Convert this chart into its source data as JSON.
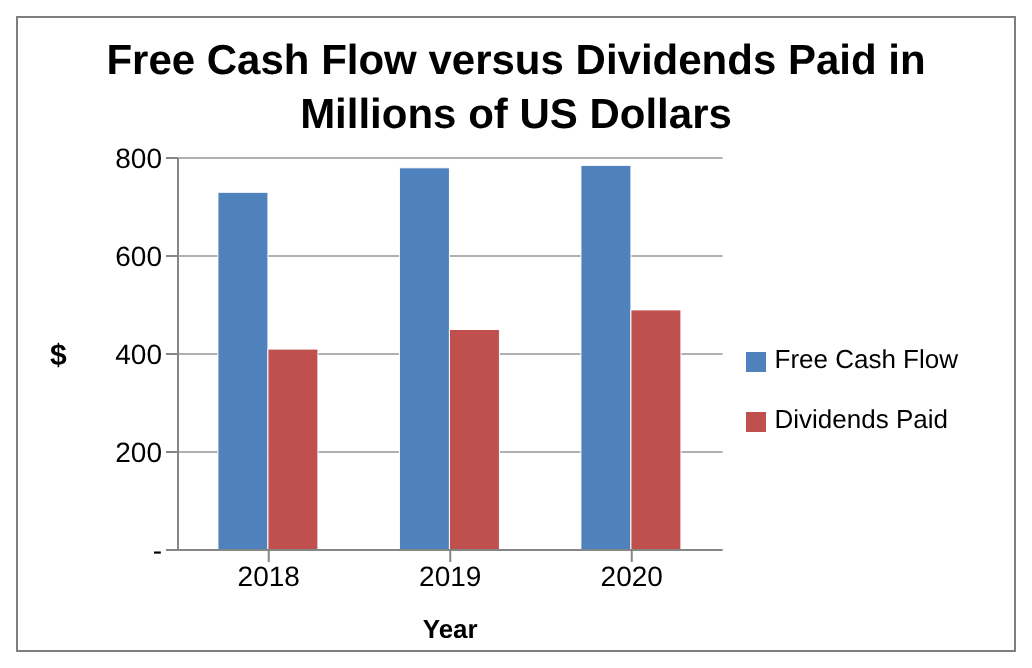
{
  "chart_data": {
    "type": "bar",
    "title": "Free Cash Flow versus Dividends Paid in Millions of US Dollars",
    "xlabel": "Year",
    "ylabel": "$",
    "categories": [
      "2018",
      "2019",
      "2020"
    ],
    "series": [
      {
        "name": "Free Cash Flow",
        "color": "#4f81bd",
        "values": [
          730,
          780,
          785
        ]
      },
      {
        "name": "Dividends Paid",
        "color": "#c0504d",
        "values": [
          410,
          450,
          490
        ]
      }
    ],
    "ylim": [
      0,
      800
    ],
    "yticks": [
      {
        "value": 0,
        "label": "-"
      },
      200,
      400,
      600,
      800
    ],
    "grid": "y",
    "legend": "right"
  }
}
